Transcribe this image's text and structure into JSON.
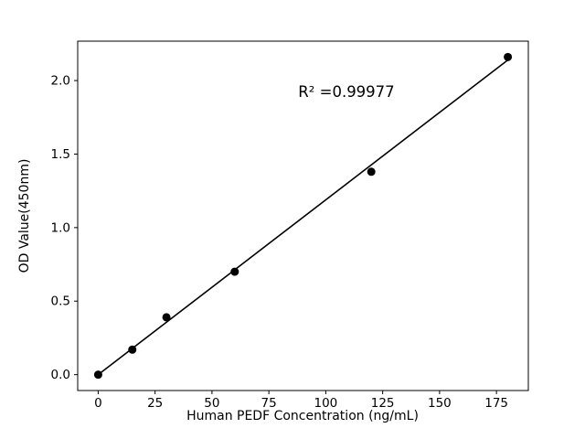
{
  "chart_data": {
    "type": "scatter",
    "title": "",
    "xlabel": "Human PEDF Concentration (ng/mL)",
    "ylabel": "OD Value(450nm)",
    "annotation": "R² =0.99977",
    "x": [
      0,
      15,
      30,
      60,
      120,
      180
    ],
    "y": [
      0.0,
      0.17,
      0.39,
      0.7,
      1.38,
      2.16
    ],
    "fit_line": {
      "x": [
        0,
        180
      ],
      "y": [
        0.0,
        2.14
      ]
    },
    "xlim": [
      -9,
      189
    ],
    "ylim": [
      -0.108,
      2.268
    ],
    "xticks": {
      "values": [
        0,
        25,
        50,
        75,
        100,
        125,
        150,
        175
      ],
      "labels": [
        "0",
        "25",
        "50",
        "75",
        "100",
        "125",
        "150",
        "175"
      ]
    },
    "yticks": {
      "values": [
        0.0,
        0.5,
        1.0,
        1.5,
        2.0
      ],
      "labels": [
        "0.0",
        "0.5",
        "1.0",
        "1.5",
        "2.0"
      ]
    },
    "legend": null,
    "grid": false,
    "colors": {
      "marker": "#000000",
      "line": "#000000",
      "axis": "#000000",
      "background": "#ffffff"
    }
  }
}
